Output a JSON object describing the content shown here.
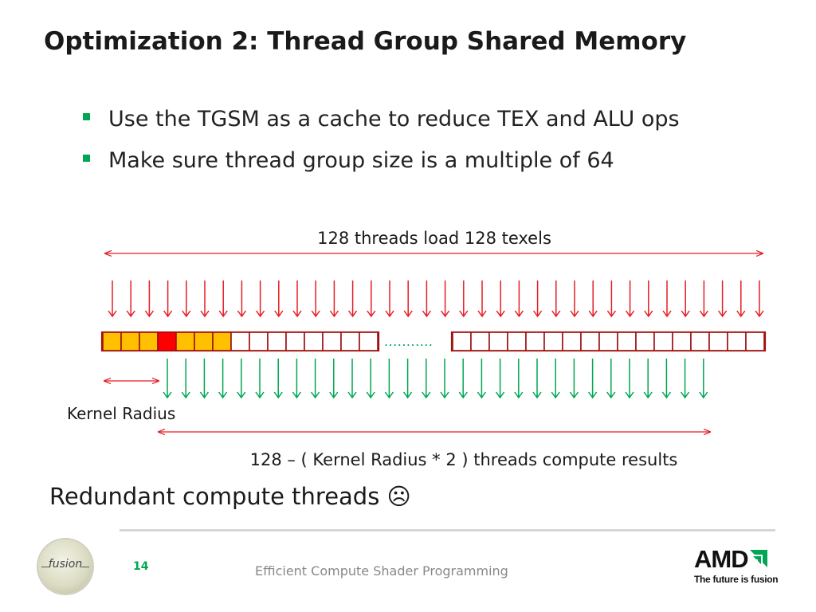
{
  "slide": {
    "title": "Optimization 2: Thread Group Shared Memory",
    "bullets": [
      "Use the TGSM as a cache to reduce TEX and ALU ops",
      "Make sure thread group size is a multiple of 64"
    ],
    "diagram": {
      "top_label": "128 threads load 128 texels",
      "dots": "...........",
      "kernel_label": "Kernel Radius",
      "bottom_label": "128 – ( Kernel Radius * 2 ) threads compute results",
      "colors": {
        "red": "#e51d23",
        "green": "#00a651",
        "orange": "#ffc000",
        "dark_red_outline": "#a01010",
        "highlight_red": "#ff0000"
      }
    },
    "note": "Redundant compute threads ☹"
  },
  "footer": {
    "page_number": "14",
    "text": "Efficient Compute Shader Programming",
    "left_logo_text": "fusion",
    "amd_logo_word": "AMD",
    "amd_tagline": "The future is fusion",
    "amd_mark_icon": "amd-arrow-icon",
    "fusion_logo_icon": "fusion-logo-icon"
  }
}
